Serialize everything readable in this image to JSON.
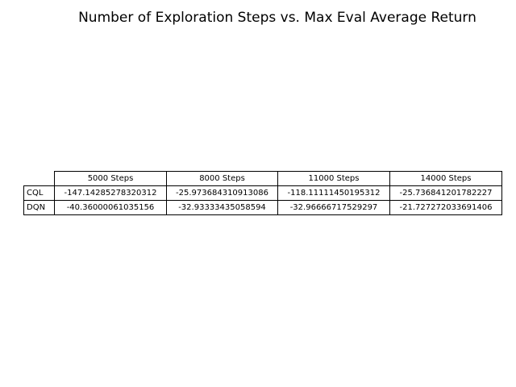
{
  "chart_data": {
    "type": "table",
    "title": "Number of Exploration Steps vs. Max Eval Average Return",
    "columns": [
      "5000 Steps",
      "8000 Steps",
      "11000 Steps",
      "14000 Steps"
    ],
    "rows": [
      {
        "label": "CQL",
        "values": [
          "-147.14285278320312",
          "-25.973684310913086",
          "-118.11111450195312",
          "-25.736841201782227"
        ]
      },
      {
        "label": "DQN",
        "values": [
          "-40.36000061035156",
          "-32.93333435058594",
          "-32.96666717529297",
          "-21.727272033691406"
        ]
      }
    ]
  }
}
